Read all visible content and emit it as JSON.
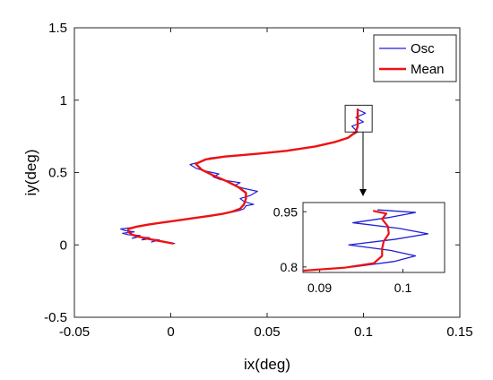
{
  "chart_data": [
    {
      "type": "line",
      "title": "",
      "xlabel": "ix(deg)",
      "ylabel": "iy(deg)",
      "xlim": [
        -0.05,
        0.15
      ],
      "ylim": [
        -0.5,
        1.5
      ],
      "xticks": [
        -0.05,
        0,
        0.05,
        0.1,
        0.15
      ],
      "xtick_labels": [
        "-0.05",
        "0",
        "0.05",
        "0.1",
        "0.15"
      ],
      "yticks": [
        -0.5,
        0,
        0.5,
        1,
        1.5
      ],
      "ytick_labels": [
        "-0.5",
        "0",
        "0.5",
        "1",
        "1.5"
      ],
      "grid": false,
      "legend": "top-right",
      "series": [
        {
          "name": "Osc",
          "color": "#1f1fd6",
          "path": [
            [
              0.002,
              0.01
            ],
            [
              -0.003,
              0.02
            ],
            [
              -0.008,
              0.03
            ],
            [
              -0.01,
              0.02
            ],
            [
              -0.006,
              0.035
            ],
            [
              -0.012,
              0.04
            ],
            [
              -0.015,
              0.035
            ],
            [
              -0.011,
              0.05
            ],
            [
              -0.017,
              0.055
            ],
            [
              -0.02,
              0.045
            ],
            [
              -0.016,
              0.065
            ],
            [
              -0.022,
              0.07
            ],
            [
              -0.025,
              0.08
            ],
            [
              -0.019,
              0.09
            ],
            [
              -0.024,
              0.1
            ],
            [
              -0.026,
              0.11
            ],
            [
              -0.02,
              0.12
            ],
            [
              -0.017,
              0.13
            ],
            [
              -0.012,
              0.14
            ],
            [
              -0.007,
              0.15
            ],
            [
              -0.001,
              0.16
            ],
            [
              0.003,
              0.17
            ],
            [
              0.009,
              0.18
            ],
            [
              0.014,
              0.19
            ],
            [
              0.02,
              0.2
            ],
            [
              0.025,
              0.21
            ],
            [
              0.029,
              0.22
            ],
            [
              0.033,
              0.23
            ],
            [
              0.036,
              0.24
            ],
            [
              0.038,
              0.25
            ],
            [
              0.039,
              0.27
            ],
            [
              0.043,
              0.28
            ],
            [
              0.038,
              0.3
            ],
            [
              0.036,
              0.32
            ],
            [
              0.041,
              0.34
            ],
            [
              0.045,
              0.37
            ],
            [
              0.038,
              0.39
            ],
            [
              0.033,
              0.41
            ],
            [
              0.036,
              0.43
            ],
            [
              0.026,
              0.45
            ],
            [
              0.022,
              0.47
            ],
            [
              0.025,
              0.49
            ],
            [
              0.018,
              0.51
            ],
            [
              0.013,
              0.53
            ],
            [
              0.01,
              0.555
            ],
            [
              0.017,
              0.58
            ],
            [
              0.02,
              0.6
            ],
            [
              0.03,
              0.615
            ],
            [
              0.045,
              0.63
            ],
            [
              0.06,
              0.65
            ],
            [
              0.075,
              0.68
            ],
            [
              0.085,
              0.71
            ],
            [
              0.092,
              0.74
            ],
            [
              0.097,
              0.78
            ],
            [
              0.094,
              0.82
            ],
            [
              0.1,
              0.85
            ],
            [
              0.096,
              0.88
            ],
            [
              0.101,
              0.91
            ],
            [
              0.097,
              0.935
            ]
          ]
        },
        {
          "name": "Mean",
          "color": "#ee1111",
          "path": [
            [
              0.001,
              0.01
            ],
            [
              -0.005,
              0.025
            ],
            [
              -0.011,
              0.04
            ],
            [
              -0.016,
              0.055
            ],
            [
              -0.02,
              0.07
            ],
            [
              -0.022,
              0.09
            ],
            [
              -0.022,
              0.11
            ],
            [
              -0.018,
              0.125
            ],
            [
              -0.012,
              0.14
            ],
            [
              -0.004,
              0.155
            ],
            [
              0.004,
              0.17
            ],
            [
              0.012,
              0.185
            ],
            [
              0.02,
              0.2
            ],
            [
              0.027,
              0.215
            ],
            [
              0.032,
              0.23
            ],
            [
              0.036,
              0.25
            ],
            [
              0.038,
              0.28
            ],
            [
              0.039,
              0.32
            ],
            [
              0.039,
              0.36
            ],
            [
              0.035,
              0.4
            ],
            [
              0.029,
              0.44
            ],
            [
              0.022,
              0.48
            ],
            [
              0.016,
              0.52
            ],
            [
              0.013,
              0.56
            ],
            [
              0.018,
              0.59
            ],
            [
              0.028,
              0.61
            ],
            [
              0.045,
              0.63
            ],
            [
              0.06,
              0.65
            ],
            [
              0.075,
              0.68
            ],
            [
              0.085,
              0.71
            ],
            [
              0.092,
              0.74
            ],
            [
              0.096,
              0.78
            ],
            [
              0.097,
              0.82
            ],
            [
              0.097,
              0.86
            ],
            [
              0.097,
              0.9
            ],
            [
              0.097,
              0.935
            ]
          ]
        }
      ],
      "annotation": "zoom-box at (0.095, 0.87) with arrow to inset"
    },
    {
      "type": "line",
      "title": "",
      "role": "inset",
      "xlim": [
        0.088,
        0.105
      ],
      "ylim": [
        0.785,
        0.975
      ],
      "xticks": [
        0.09,
        0.1
      ],
      "xtick_labels": [
        "0.09",
        "0.1"
      ],
      "yticks": [
        0.8,
        0.95
      ],
      "ytick_labels": [
        "0.8",
        "0.95"
      ],
      "series": [
        {
          "name": "Osc",
          "color": "#1f1fd6",
          "path": [
            [
              0.088,
              0.79
            ],
            [
              0.094,
              0.8
            ],
            [
              0.099,
              0.815
            ],
            [
              0.1015,
              0.83
            ],
            [
              0.0985,
              0.845
            ],
            [
              0.0935,
              0.86
            ],
            [
              0.099,
              0.875
            ],
            [
              0.103,
              0.89
            ],
            [
              0.0995,
              0.905
            ],
            [
              0.094,
              0.92
            ],
            [
              0.0985,
              0.935
            ],
            [
              0.1015,
              0.948
            ],
            [
              0.097,
              0.955
            ]
          ]
        },
        {
          "name": "Mean",
          "color": "#ee1111",
          "path": [
            [
              0.088,
              0.79
            ],
            [
              0.093,
              0.798
            ],
            [
              0.0965,
              0.81
            ],
            [
              0.0975,
              0.83
            ],
            [
              0.0975,
              0.85
            ],
            [
              0.0977,
              0.87
            ],
            [
              0.0983,
              0.89
            ],
            [
              0.0982,
              0.91
            ],
            [
              0.0975,
              0.93
            ],
            [
              0.098,
              0.945
            ],
            [
              0.0965,
              0.952
            ]
          ]
        }
      ]
    }
  ]
}
